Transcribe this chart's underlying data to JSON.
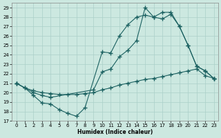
{
  "title": "",
  "xlabel": "Humidex (Indice chaleur)",
  "ylabel": "",
  "xlim": [
    -0.5,
    23.5
  ],
  "ylim": [
    17,
    29.5
  ],
  "yticks": [
    17,
    18,
    19,
    20,
    21,
    22,
    23,
    24,
    25,
    26,
    27,
    28,
    29
  ],
  "xticks": [
    0,
    1,
    2,
    3,
    4,
    5,
    6,
    7,
    8,
    9,
    10,
    11,
    12,
    13,
    14,
    15,
    16,
    17,
    18,
    19,
    20,
    21,
    22,
    23
  ],
  "bg_color": "#cce8e0",
  "grid_color": "#aacfc8",
  "line_color": "#1a6060",
  "line1_x": [
    0,
    1,
    2,
    3,
    4,
    5,
    6,
    7,
    8,
    10,
    11,
    12,
    13,
    14,
    15,
    16,
    17,
    18,
    19,
    20,
    21,
    22,
    23
  ],
  "line1_y": [
    21.0,
    20.5,
    19.7,
    18.9,
    18.8,
    18.2,
    17.8,
    17.5,
    18.4,
    24.3,
    24.2,
    26.0,
    27.2,
    28.0,
    28.2,
    28.0,
    28.5,
    28.5,
    27.0,
    25.0,
    22.8,
    22.3,
    21.5
  ],
  "line2_x": [
    0,
    2,
    3,
    4,
    9,
    10,
    11,
    12,
    13,
    14,
    15,
    16,
    17,
    18,
    19,
    20,
    21,
    22,
    23
  ],
  "line2_y": [
    21.0,
    20.0,
    19.7,
    19.5,
    20.3,
    22.2,
    22.5,
    23.8,
    24.5,
    25.5,
    29.0,
    28.0,
    27.8,
    28.3,
    27.0,
    25.0,
    22.8,
    22.3,
    21.5
  ],
  "line3_x": [
    0,
    1,
    2,
    3,
    4,
    5,
    6,
    7,
    8,
    9,
    10,
    11,
    12,
    13,
    14,
    15,
    16,
    17,
    18,
    19,
    20,
    21,
    22,
    23
  ],
  "line3_y": [
    21.0,
    20.5,
    20.2,
    20.0,
    19.9,
    19.8,
    19.8,
    19.8,
    19.9,
    20.0,
    20.3,
    20.5,
    20.8,
    21.0,
    21.2,
    21.4,
    21.5,
    21.7,
    21.9,
    22.1,
    22.3,
    22.5,
    21.8,
    21.5
  ]
}
